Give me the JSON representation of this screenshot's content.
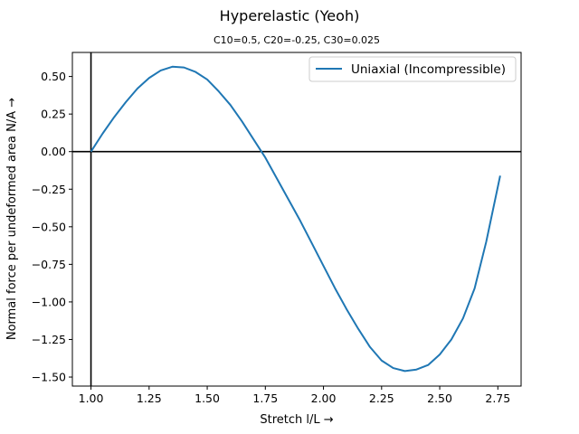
{
  "chart_data": {
    "type": "line",
    "title": "Hyperelastic (Yeoh)",
    "subtitle": "C10=0.5, C20=-0.25, C30=0.025",
    "xlabel": "Stretch l/L  →",
    "ylabel": "Normal force per undeformed area N/A  →",
    "xlim": [
      0.92,
      2.85
    ],
    "ylim": [
      -1.56,
      0.66
    ],
    "xticks": [
      1.0,
      1.25,
      1.5,
      1.75,
      2.0,
      2.25,
      2.5,
      2.75
    ],
    "xtick_labels": [
      "1.00",
      "1.25",
      "1.50",
      "1.75",
      "2.00",
      "2.25",
      "2.50",
      "2.75"
    ],
    "yticks": [
      0.5,
      0.25,
      0.0,
      -0.25,
      -0.5,
      -0.75,
      -1.0,
      -1.25,
      -1.5
    ],
    "ytick_labels": [
      "0.50",
      "0.25",
      "0.00",
      "−0.25",
      "−0.50",
      "−0.75",
      "−1.00",
      "−1.25",
      "−1.50"
    ],
    "grid": false,
    "legend_position": "top-right",
    "reference_lines": {
      "x": 1.0,
      "y": 0.0
    },
    "series": [
      {
        "name": "Uniaxial (Incompressible)",
        "color": "#1f77b4",
        "x": [
          1.0,
          1.05,
          1.1,
          1.15,
          1.2,
          1.25,
          1.3,
          1.35,
          1.4,
          1.45,
          1.5,
          1.55,
          1.6,
          1.65,
          1.7,
          1.75,
          1.8,
          1.85,
          1.9,
          1.95,
          2.0,
          2.05,
          2.1,
          2.15,
          2.2,
          2.25,
          2.3,
          2.35,
          2.4,
          2.45,
          2.5,
          2.55,
          2.6,
          2.65,
          2.7,
          2.76
        ],
        "y": [
          0.0,
          0.12,
          0.23,
          0.33,
          0.42,
          0.49,
          0.54,
          0.565,
          0.56,
          0.53,
          0.48,
          0.4,
          0.31,
          0.2,
          0.08,
          -0.04,
          -0.18,
          -0.32,
          -0.46,
          -0.61,
          -0.76,
          -0.91,
          -1.05,
          -1.18,
          -1.3,
          -1.39,
          -1.44,
          -1.46,
          -1.45,
          -1.42,
          -1.35,
          -1.25,
          -1.11,
          -0.91,
          -0.6,
          -0.16
        ]
      }
    ]
  }
}
